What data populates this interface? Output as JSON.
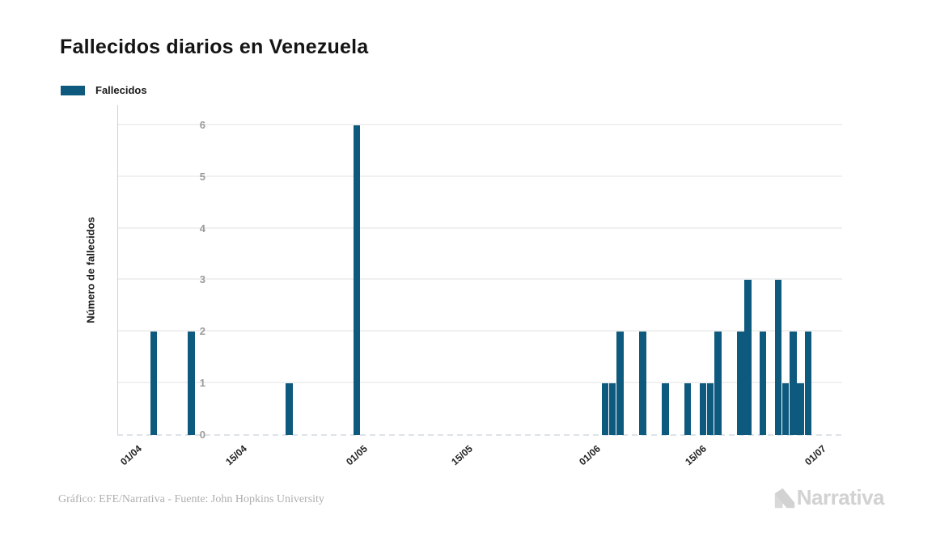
{
  "title": "Fallecidos diarios en Venezuela",
  "legend": {
    "label": "Fallecidos",
    "swatch_color": "#0e5a7e"
  },
  "y_axis": {
    "title": "Número de fallecidos",
    "tick_labels": [
      "0",
      "1",
      "2",
      "3",
      "4",
      "5",
      "6"
    ]
  },
  "x_axis": {
    "tick_labels": [
      "01/04",
      "15/04",
      "01/05",
      "15/05",
      "01/06",
      "15/06",
      "01/07"
    ]
  },
  "footer": {
    "credit": "Gráfico: EFE/Narrativa - Fuente: John Hopkins University"
  },
  "logo": {
    "text": "Narrativa",
    "color": "#d2d2d2"
  },
  "chart_data": {
    "type": "bar",
    "title": "Fallecidos diarios en Venezuela",
    "xlabel": "",
    "ylabel": "Número de fallecidos",
    "ylim": [
      0,
      6
    ],
    "yticks": [
      0,
      1,
      2,
      3,
      4,
      5,
      6
    ],
    "grid": true,
    "legend_position": "top-left",
    "bar_color": "#0e5a7e",
    "x_start": "01/04",
    "x_end": "01/07",
    "xticks": [
      {
        "label": "01/04",
        "day": 0
      },
      {
        "label": "15/04",
        "day": 14
      },
      {
        "label": "01/05",
        "day": 30
      },
      {
        "label": "15/05",
        "day": 44
      },
      {
        "label": "01/06",
        "day": 61
      },
      {
        "label": "15/06",
        "day": 75
      },
      {
        "label": "01/07",
        "day": 91
      }
    ],
    "series": [
      {
        "name": "Fallecidos",
        "color": "#0e5a7e",
        "points": [
          {
            "date": "04/04",
            "day": 3,
            "value": 2
          },
          {
            "date": "09/04",
            "day": 8,
            "value": 2
          },
          {
            "date": "22/04",
            "day": 21,
            "value": 1
          },
          {
            "date": "01/05",
            "day": 30,
            "value": 6
          },
          {
            "date": "03/06",
            "day": 63,
            "value": 1
          },
          {
            "date": "04/06",
            "day": 64,
            "value": 1
          },
          {
            "date": "05/06",
            "day": 65,
            "value": 2
          },
          {
            "date": "08/06",
            "day": 68,
            "value": 2
          },
          {
            "date": "11/06",
            "day": 71,
            "value": 1
          },
          {
            "date": "14/06",
            "day": 74,
            "value": 1
          },
          {
            "date": "16/06",
            "day": 76,
            "value": 1
          },
          {
            "date": "17/06",
            "day": 77,
            "value": 1
          },
          {
            "date": "18/06",
            "day": 78,
            "value": 2
          },
          {
            "date": "21/06",
            "day": 81,
            "value": 2
          },
          {
            "date": "22/06",
            "day": 82,
            "value": 3
          },
          {
            "date": "24/06",
            "day": 84,
            "value": 2
          },
          {
            "date": "26/06",
            "day": 86,
            "value": 3
          },
          {
            "date": "27/06",
            "day": 87,
            "value": 1
          },
          {
            "date": "28/06",
            "day": 88,
            "value": 2
          },
          {
            "date": "29/06",
            "day": 89,
            "value": 1
          },
          {
            "date": "30/06",
            "day": 90,
            "value": 2
          }
        ]
      }
    ]
  }
}
